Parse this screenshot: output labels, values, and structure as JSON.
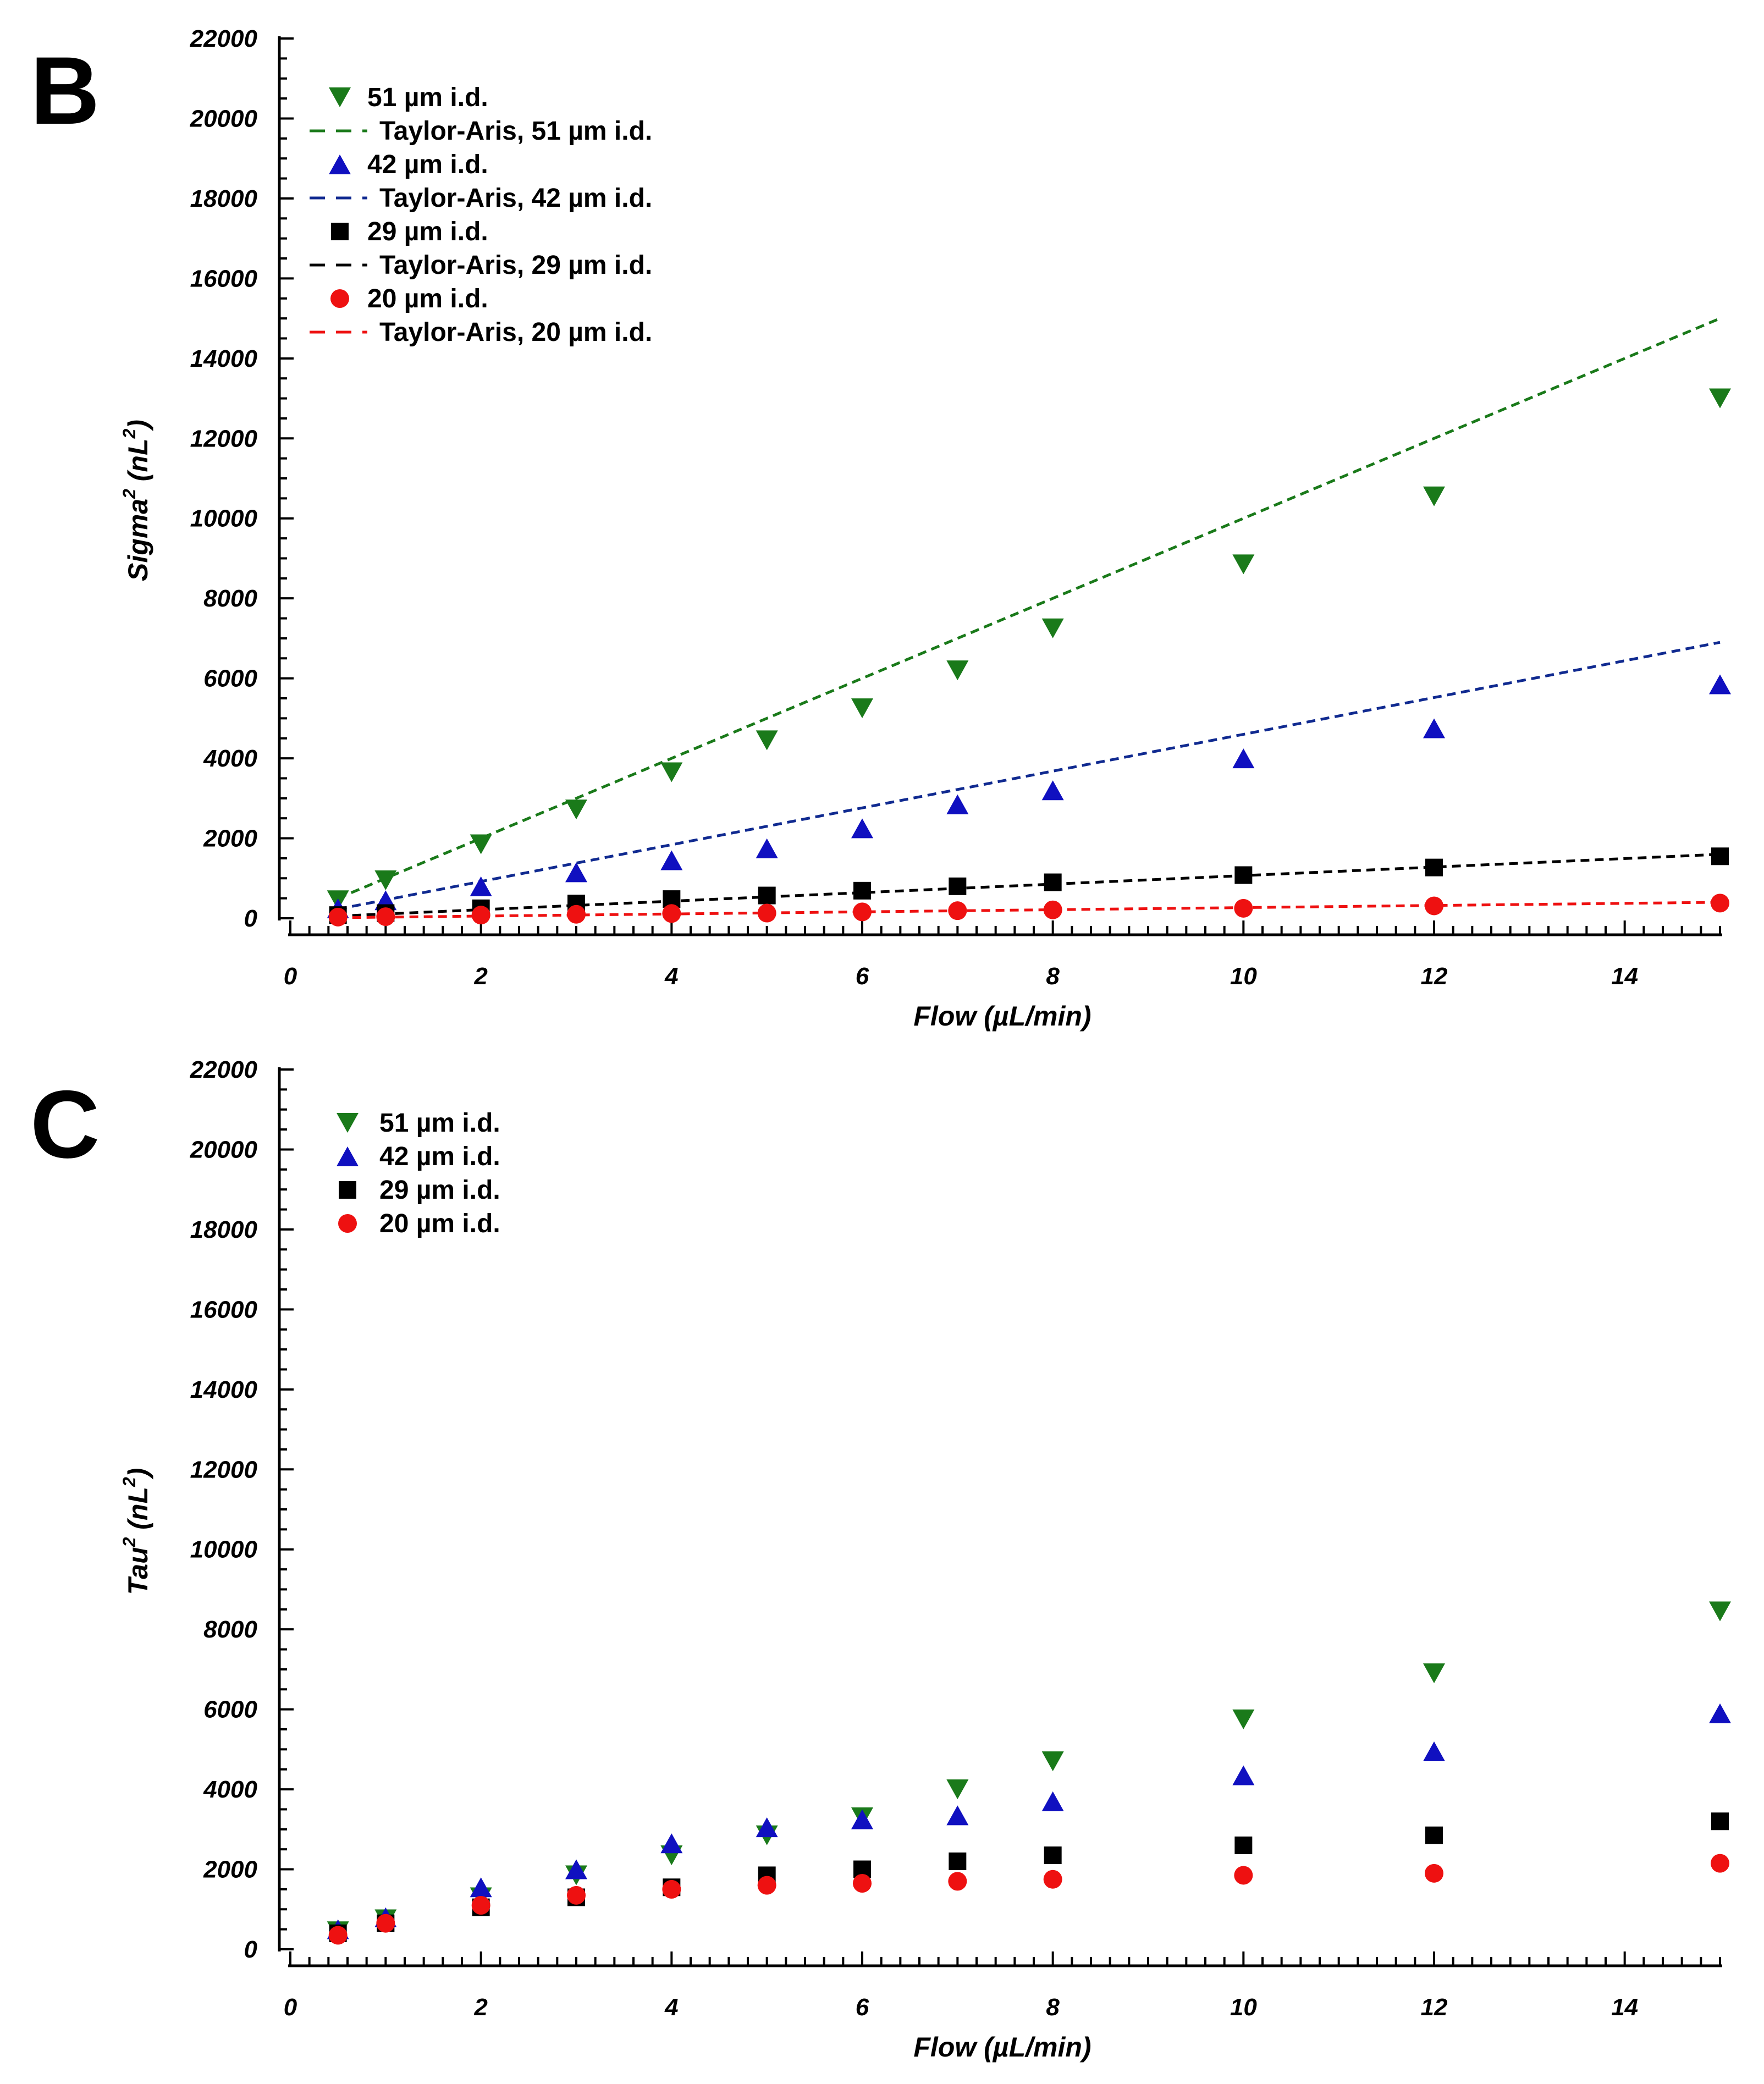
{
  "chart_data": [
    {
      "type": "scatter",
      "panel": "B",
      "xlabel": "Flow (µL/min)",
      "ylabel": "Sigma",
      "ylabel_sup": "2",
      "ylabel_units": "(nL",
      "ylabel_units_sup": "2",
      "ylabel_close": ")",
      "xlim": [
        0,
        15
      ],
      "ylim": [
        0,
        22000
      ],
      "x_ticks": [
        0,
        2,
        4,
        6,
        8,
        10,
        12,
        14
      ],
      "y_ticks": [
        0,
        2000,
        4000,
        6000,
        8000,
        10000,
        12000,
        14000,
        16000,
        18000,
        20000,
        22000
      ],
      "x": [
        0.5,
        1,
        2,
        3,
        4,
        5,
        6,
        7,
        8,
        10,
        12,
        15
      ],
      "series": [
        {
          "name": "51 µm i.d.",
          "marker": "triangle-down",
          "color": "#1a7a1a",
          "values": [
            450,
            950,
            1850,
            2720,
            3650,
            4450,
            5250,
            6200,
            7250,
            8850,
            10550,
            13000
          ]
        },
        {
          "name": "42 µm i.d.",
          "marker": "triangle-up",
          "color": "#1010c0",
          "values": [
            250,
            450,
            800,
            1150,
            1450,
            1750,
            2250,
            2850,
            3200,
            4000,
            4750,
            5850
          ]
        },
        {
          "name": "29 µm i.d.",
          "marker": "square",
          "color": "#000000",
          "values": [
            80,
            130,
            250,
            370,
            480,
            570,
            690,
            800,
            900,
            1080,
            1270,
            1550
          ]
        },
        {
          "name": "20 µm i.d.",
          "marker": "circle",
          "color": "#ee1111",
          "values": [
            30,
            40,
            80,
            100,
            120,
            130,
            160,
            190,
            210,
            250,
            310,
            380
          ]
        }
      ],
      "fits": [
        {
          "name": "Taylor-Aris, 51 µm i.d.",
          "style": "dashed",
          "color": "#1a7a1a",
          "x": [
            0.5,
            15
          ],
          "y": [
            500,
            15000
          ]
        },
        {
          "name": "Taylor-Aris, 42 µm i.d.",
          "style": "dashed",
          "color": "#102a90",
          "x": [
            0.5,
            15
          ],
          "y": [
            230,
            6900
          ]
        },
        {
          "name": "Taylor-Aris, 29 µm i.d.",
          "style": "dashed",
          "color": "#000000",
          "x": [
            0.5,
            15
          ],
          "y": [
            55,
            1600
          ]
        },
        {
          "name": "Taylor-Aris, 20 µm i.d.",
          "style": "dashed",
          "color": "#ee1111",
          "x": [
            0.5,
            15
          ],
          "y": [
            15,
            400
          ]
        }
      ],
      "legend": [
        "51 µm i.d.",
        "Taylor-Aris, 51 µm i.d.",
        "42 µm i.d.",
        "Taylor-Aris, 42 µm i.d.",
        "29 µm i.d.",
        "Taylor-Aris, 29 µm i.d.",
        "20 µm i.d.",
        "Taylor-Aris, 20 µm i.d."
      ],
      "legend_position": "top-left",
      "grid": false
    },
    {
      "type": "scatter",
      "panel": "C",
      "xlabel": "Flow (µL/min)",
      "ylabel": "Tau",
      "ylabel_sup": "2",
      "ylabel_units": "(nL",
      "ylabel_units_sup": "2",
      "ylabel_close": ")",
      "xlim": [
        0,
        15
      ],
      "ylim": [
        0,
        22000
      ],
      "x_ticks": [
        0,
        2,
        4,
        6,
        8,
        10,
        12,
        14
      ],
      "y_ticks": [
        0,
        2000,
        4000,
        6000,
        8000,
        10000,
        12000,
        14000,
        16000,
        18000,
        20000,
        22000
      ],
      "x": [
        0.5,
        1,
        2,
        3,
        4,
        5,
        6,
        7,
        8,
        10,
        12,
        15
      ],
      "series": [
        {
          "name": "51 µm i.d.",
          "marker": "triangle-down",
          "color": "#1a7a1a",
          "values": [
            450,
            750,
            1300,
            1850,
            2350,
            2850,
            3300,
            4000,
            4700,
            5750,
            6900,
            8450
          ]
        },
        {
          "name": "42 µm i.d.",
          "marker": "triangle-up",
          "color": "#1010c0",
          "values": [
            500,
            800,
            1550,
            2000,
            2650,
            3050,
            3250,
            3350,
            3700,
            4350,
            4950,
            5900
          ]
        },
        {
          "name": "29 µm i.d.",
          "marker": "square",
          "color": "#000000",
          "values": [
            400,
            650,
            1050,
            1300,
            1550,
            1850,
            2000,
            2200,
            2350,
            2600,
            2850,
            3200
          ]
        },
        {
          "name": "20 µm i.d.",
          "marker": "circle",
          "color": "#ee1111",
          "values": [
            350,
            650,
            1100,
            1350,
            1500,
            1600,
            1650,
            1700,
            1750,
            1850,
            1900,
            2150
          ]
        }
      ],
      "fits": [],
      "legend": [
        "51 µm i.d.",
        "42 µm i.d.",
        "29 µm i.d.",
        "20 µm i.d."
      ],
      "legend_position": "top-left",
      "grid": false
    }
  ]
}
